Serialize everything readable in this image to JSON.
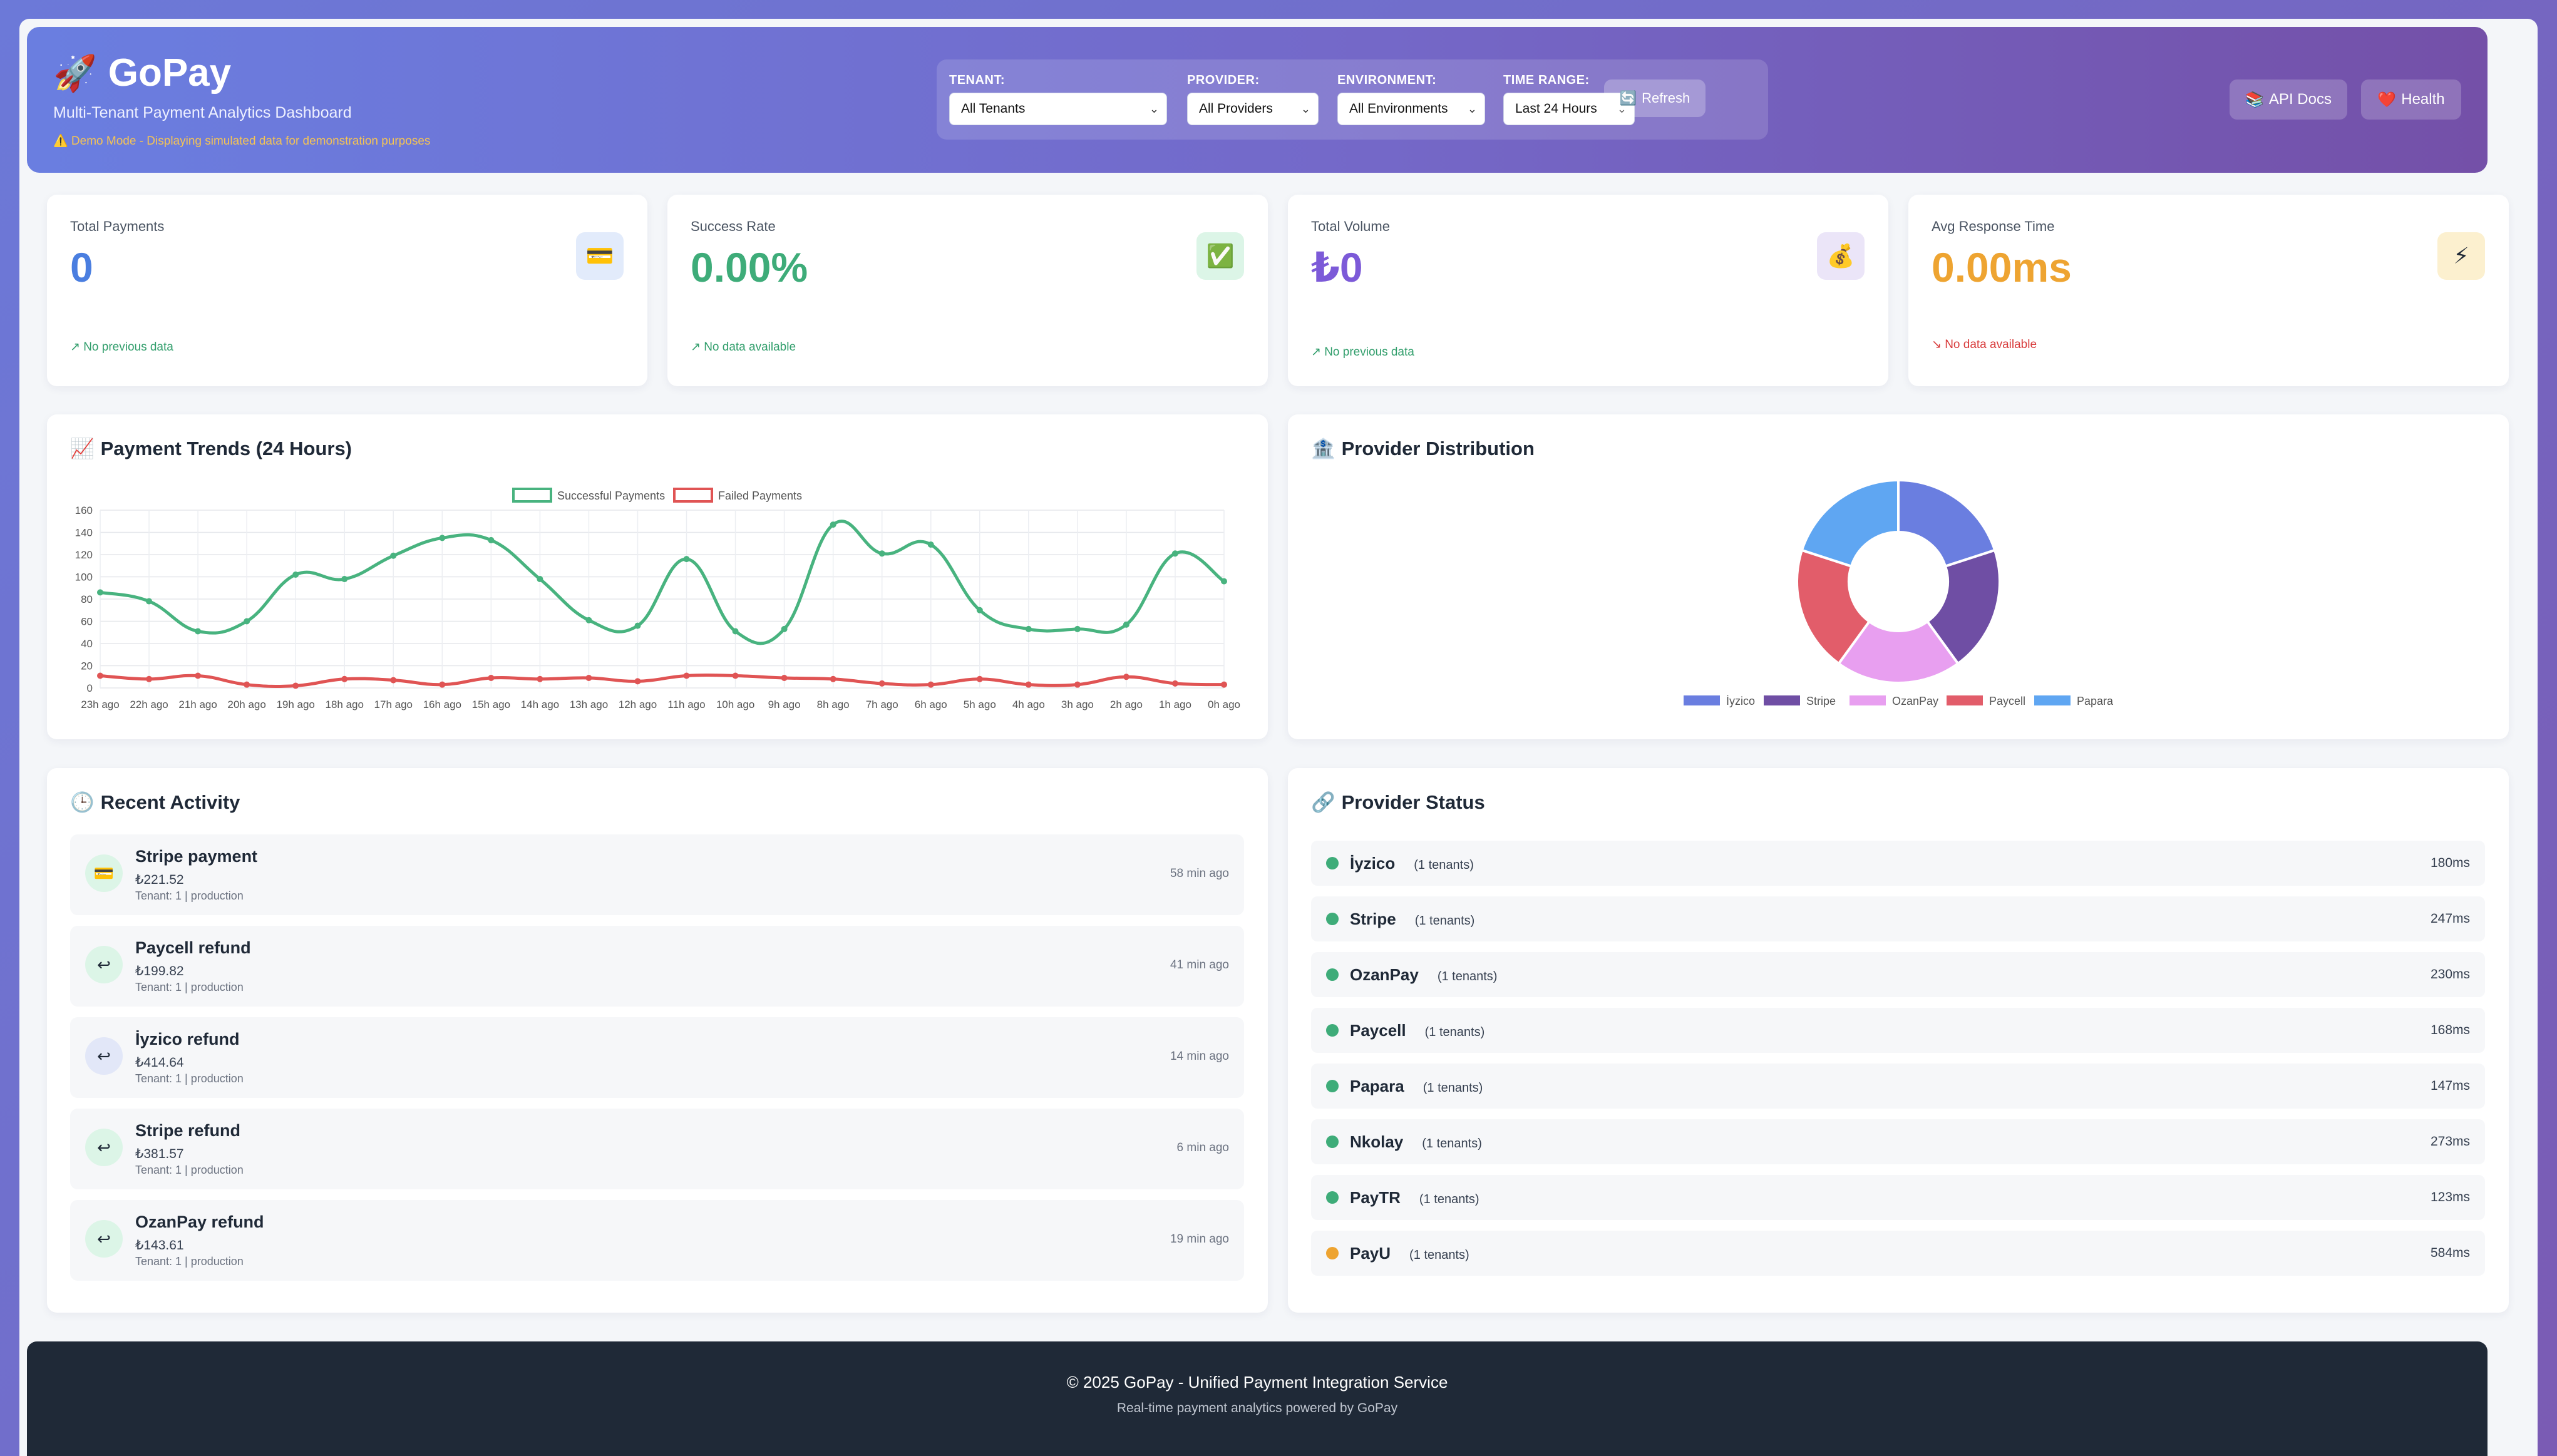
{
  "header": {
    "logo_emoji": "🚀",
    "title": "GoPay",
    "subtitle": "Multi-Tenant Payment Analytics Dashboard",
    "demo_notice": "⚠️ Demo Mode - Displaying simulated data for demonstration purposes",
    "filters": {
      "tenant": {
        "label": "TENANT:",
        "value": "All Tenants"
      },
      "provider": {
        "label": "PROVIDER:",
        "value": "All Providers"
      },
      "environment": {
        "label": "ENVIRONMENT:",
        "value": "All Environments"
      },
      "time_range": {
        "label": "TIME RANGE:",
        "value": "Last 24 Hours"
      }
    },
    "refresh_label": "Refresh",
    "api_docs_label": "API Docs",
    "health_label": "Health"
  },
  "stats": [
    {
      "label": "Total Payments",
      "value": "0",
      "trend": "↗ No previous data",
      "icon": "💳",
      "color": "#4a7ee0",
      "trend_color": "#2f9d6a",
      "icon_bg": "#e2ebfb"
    },
    {
      "label": "Success Rate",
      "value": "0.00%",
      "trend": "↗ No data available",
      "icon": "✅",
      "color": "#3eac79",
      "trend_color": "#2f9d6a",
      "icon_bg": "#dcf5e7"
    },
    {
      "label": "Total Volume",
      "value": "₺0",
      "trend": "↗ No previous data",
      "icon": "💰",
      "color": "#7c5ad8",
      "trend_color": "#2f9d6a",
      "icon_bg": "#ebe5f8"
    },
    {
      "label": "Avg Response Time",
      "value": "0.00ms",
      "trend": "↘ No data available",
      "icon": "⚡",
      "color": "#eea431",
      "trend_color": "#d83a3a",
      "icon_bg": "#fcf0cf"
    }
  ],
  "trends": {
    "title_emoji": "📈",
    "title": "Payment Trends (24 Hours)"
  },
  "distribution": {
    "title_emoji": "🏦",
    "title": "Provider Distribution"
  },
  "chart_data": [
    {
      "type": "line",
      "title": "Payment Trends (24 Hours)",
      "categories": [
        "23h ago",
        "22h ago",
        "21h ago",
        "20h ago",
        "19h ago",
        "18h ago",
        "17h ago",
        "16h ago",
        "15h ago",
        "14h ago",
        "13h ago",
        "12h ago",
        "11h ago",
        "10h ago",
        "9h ago",
        "8h ago",
        "7h ago",
        "6h ago",
        "5h ago",
        "4h ago",
        "3h ago",
        "2h ago",
        "1h ago",
        "0h ago"
      ],
      "ylim": [
        0,
        160
      ],
      "yticks": [
        0,
        20,
        40,
        60,
        80,
        100,
        120,
        140,
        160
      ],
      "grid": true,
      "legend": "top-center",
      "series": [
        {
          "name": "Successful Payments",
          "color": "#48b37f",
          "values": [
            86,
            78,
            51,
            60,
            102,
            98,
            119,
            135,
            133,
            98,
            61,
            56,
            116,
            51,
            53,
            147,
            121,
            129,
            70,
            53,
            53,
            57,
            121,
            96
          ]
        },
        {
          "name": "Failed Payments",
          "color": "#e05454",
          "values": [
            11,
            8,
            11,
            3,
            2,
            8,
            7,
            3,
            9,
            8,
            9,
            6,
            11,
            11,
            9,
            8,
            4,
            3,
            8,
            3,
            3,
            10,
            4,
            3
          ]
        }
      ]
    },
    {
      "type": "pie",
      "title": "",
      "legend": "bottom",
      "categories": [
        "İyzico",
        "Stripe",
        "OzanPay",
        "Paycell",
        "Papara"
      ],
      "values": [
        20,
        20,
        20,
        20,
        20
      ],
      "colors": [
        "#6a7ee0",
        "#6f4ea4",
        "#e89ff0",
        "#e25d6a",
        "#5fa6f2"
      ]
    }
  ],
  "activity": {
    "title_emoji": "🕒",
    "title": "Recent Activity",
    "items": [
      {
        "title": "Stripe payment",
        "amount": "₺221.52",
        "meta": "Tenant: 1 | production",
        "time": "58 min ago",
        "icon": "💳",
        "icon_bg": "#dcf5e7"
      },
      {
        "title": "Paycell refund",
        "amount": "₺199.82",
        "meta": "Tenant: 1 | production",
        "time": "41 min ago",
        "icon": "↩",
        "icon_bg": "#dcf5e7"
      },
      {
        "title": "İyzico refund",
        "amount": "₺414.64",
        "meta": "Tenant: 1 | production",
        "time": "14 min ago",
        "icon": "↩",
        "icon_bg": "#e2e7f8"
      },
      {
        "title": "Stripe refund",
        "amount": "₺381.57",
        "meta": "Tenant: 1 | production",
        "time": "6 min ago",
        "icon": "↩",
        "icon_bg": "#dcf5e7"
      },
      {
        "title": "OzanPay refund",
        "amount": "₺143.61",
        "meta": "Tenant: 1 | production",
        "time": "19 min ago",
        "icon": "↩",
        "icon_bg": "#dcf5e7"
      }
    ]
  },
  "provider_status": {
    "title_emoji": "🔗",
    "title": "Provider Status",
    "items": [
      {
        "name": "İyzico",
        "tenants": "(1 tenants)",
        "ms": "180ms",
        "status_color": "#3eac79"
      },
      {
        "name": "Stripe",
        "tenants": "(1 tenants)",
        "ms": "247ms",
        "status_color": "#3eac79"
      },
      {
        "name": "OzanPay",
        "tenants": "(1 tenants)",
        "ms": "230ms",
        "status_color": "#3eac79"
      },
      {
        "name": "Paycell",
        "tenants": "(1 tenants)",
        "ms": "168ms",
        "status_color": "#3eac79"
      },
      {
        "name": "Papara",
        "tenants": "(1 tenants)",
        "ms": "147ms",
        "status_color": "#3eac79"
      },
      {
        "name": "Nkolay",
        "tenants": "(1 tenants)",
        "ms": "273ms",
        "status_color": "#3eac79"
      },
      {
        "name": "PayTR",
        "tenants": "(1 tenants)",
        "ms": "123ms",
        "status_color": "#3eac79"
      },
      {
        "name": "PayU",
        "tenants": "(1 tenants)",
        "ms": "584ms",
        "status_color": "#eea431"
      }
    ]
  },
  "footer": {
    "line1": "© 2025 GoPay - Unified Payment Integration Service",
    "line2": "Real-time payment analytics powered by GoPay"
  }
}
